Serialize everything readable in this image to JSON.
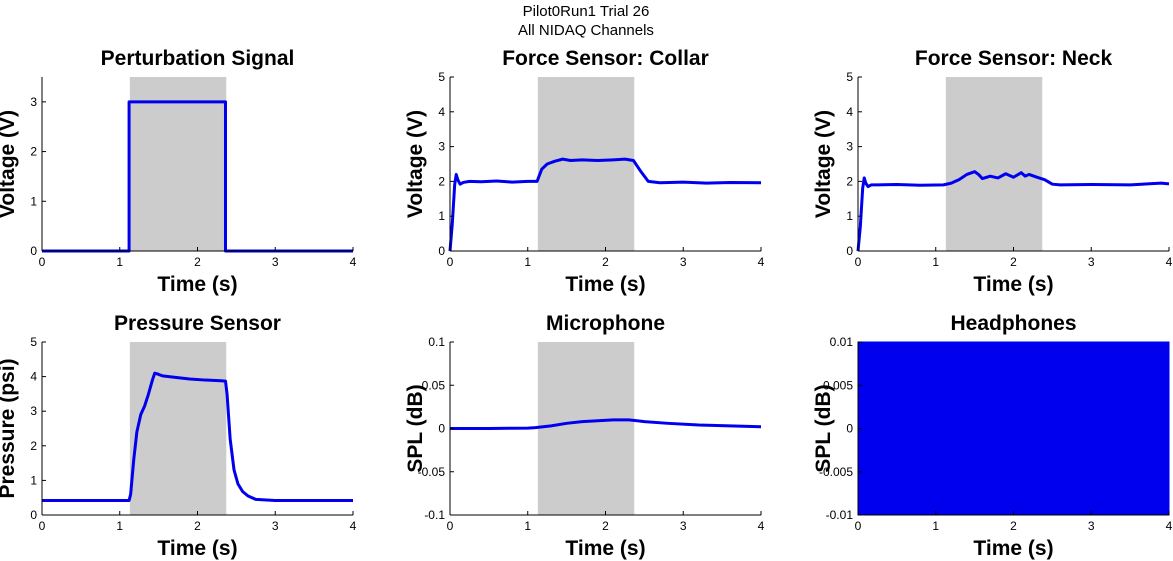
{
  "figure": {
    "title_line1": "Pilot0Run1 Trial 26",
    "title_line2": "All NIDAQ Channels"
  },
  "colors": {
    "line": "#0000ee",
    "shade": "#cccccc",
    "axis": "#000000"
  },
  "chart_data": [
    {
      "type": "line",
      "title": "Perturbation Signal",
      "xlabel": "Time (s)",
      "ylabel": "Voltage (V)",
      "xlim": [
        0,
        4
      ],
      "ylim": [
        0,
        3.5
      ],
      "xticks": [
        "0",
        "1",
        "2",
        "3",
        "4"
      ],
      "xtick_values": [
        0,
        1,
        2,
        3,
        4
      ],
      "yticks": [
        "0",
        "1",
        "2",
        "3"
      ],
      "ytick_values": [
        0,
        1,
        2,
        3
      ],
      "shade": [
        1.13,
        2.37
      ],
      "series": [
        {
          "x": [
            0,
            1.12,
            1.12,
            1.14,
            2.36,
            2.36,
            2.38,
            4
          ],
          "y": [
            0,
            0,
            3,
            3,
            3,
            0,
            0,
            0
          ]
        }
      ],
      "fill": false
    },
    {
      "type": "line",
      "title": "Force Sensor: Collar",
      "xlabel": "Time (s)",
      "ylabel": "Voltage (V)",
      "xlim": [
        0,
        4
      ],
      "ylim": [
        0,
        5
      ],
      "xticks": [
        "0",
        "1",
        "2",
        "3",
        "4"
      ],
      "xtick_values": [
        0,
        1,
        2,
        3,
        4
      ],
      "yticks": [
        "0",
        "1",
        "2",
        "3",
        "4",
        "5"
      ],
      "ytick_values": [
        0,
        1,
        2,
        3,
        4,
        5
      ],
      "shade": [
        1.13,
        2.37
      ],
      "series": [
        {
          "x": [
            0,
            0.03,
            0.06,
            0.08,
            0.1,
            0.13,
            0.17,
            0.25,
            0.4,
            0.6,
            0.8,
            1.0,
            1.12,
            1.18,
            1.25,
            1.35,
            1.45,
            1.55,
            1.7,
            1.9,
            2.1,
            2.25,
            2.36,
            2.45,
            2.55,
            2.7,
            3.0,
            3.3,
            3.6,
            4.0
          ],
          "y": [
            0,
            0.8,
            1.9,
            2.2,
            2.05,
            1.92,
            1.97,
            2.0,
            1.99,
            2.01,
            1.98,
            2.0,
            2.0,
            2.35,
            2.5,
            2.58,
            2.64,
            2.6,
            2.62,
            2.6,
            2.62,
            2.64,
            2.6,
            2.3,
            2.0,
            1.96,
            1.98,
            1.95,
            1.97,
            1.96
          ]
        }
      ],
      "fill": false
    },
    {
      "type": "line",
      "title": "Force Sensor: Neck",
      "xlabel": "Time (s)",
      "ylabel": "Voltage (V)",
      "xlim": [
        0,
        4
      ],
      "ylim": [
        0,
        5
      ],
      "xticks": [
        "0",
        "1",
        "2",
        "3",
        "4"
      ],
      "xtick_values": [
        0,
        1,
        2,
        3,
        4
      ],
      "yticks": [
        "0",
        "1",
        "2",
        "3",
        "4",
        "5"
      ],
      "ytick_values": [
        0,
        1,
        2,
        3,
        4,
        5
      ],
      "shade": [
        1.13,
        2.37
      ],
      "series": [
        {
          "x": [
            0,
            0.03,
            0.06,
            0.08,
            0.1,
            0.13,
            0.17,
            0.25,
            0.5,
            0.8,
            1.1,
            1.2,
            1.3,
            1.4,
            1.5,
            1.55,
            1.6,
            1.7,
            1.8,
            1.9,
            2.0,
            2.1,
            2.15,
            2.2,
            2.3,
            2.4,
            2.5,
            2.6,
            3.0,
            3.5,
            3.9,
            4.0
          ],
          "y": [
            0,
            0.7,
            1.8,
            2.1,
            1.95,
            1.85,
            1.9,
            1.9,
            1.91,
            1.89,
            1.9,
            1.95,
            2.05,
            2.2,
            2.28,
            2.2,
            2.08,
            2.15,
            2.1,
            2.22,
            2.12,
            2.25,
            2.15,
            2.2,
            2.12,
            2.05,
            1.92,
            1.9,
            1.91,
            1.9,
            1.95,
            1.93
          ]
        }
      ],
      "fill": false
    },
    {
      "type": "line",
      "title": "Pressure Sensor",
      "xlabel": "Time (s)",
      "ylabel": "Pressure (psi)",
      "xlim": [
        0,
        4
      ],
      "ylim": [
        0,
        5
      ],
      "xticks": [
        "0",
        "1",
        "2",
        "3",
        "4"
      ],
      "xtick_values": [
        0,
        1,
        2,
        3,
        4
      ],
      "yticks": [
        "0",
        "1",
        "2",
        "3",
        "4",
        "5"
      ],
      "ytick_values": [
        0,
        1,
        2,
        3,
        4,
        5
      ],
      "shade": [
        1.13,
        2.37
      ],
      "series": [
        {
          "x": [
            0,
            0.5,
            1.0,
            1.12,
            1.14,
            1.18,
            1.22,
            1.27,
            1.32,
            1.37,
            1.42,
            1.45,
            1.48,
            1.55,
            1.7,
            1.9,
            2.1,
            2.3,
            2.36,
            2.38,
            2.42,
            2.47,
            2.52,
            2.58,
            2.65,
            2.75,
            3.0,
            3.5,
            4.0
          ],
          "y": [
            0.42,
            0.42,
            0.42,
            0.42,
            0.6,
            1.6,
            2.4,
            2.9,
            3.15,
            3.5,
            3.9,
            4.1,
            4.08,
            4.02,
            3.98,
            3.93,
            3.9,
            3.88,
            3.87,
            3.5,
            2.2,
            1.3,
            0.9,
            0.68,
            0.55,
            0.45,
            0.42,
            0.42,
            0.42
          ]
        }
      ],
      "fill": false
    },
    {
      "type": "line",
      "title": "Microphone",
      "xlabel": "Time (s)",
      "ylabel": "SPL (dB)",
      "xlim": [
        0,
        4
      ],
      "ylim": [
        -0.1,
        0.1
      ],
      "xticks": [
        "0",
        "1",
        "2",
        "3",
        "4"
      ],
      "xtick_values": [
        0,
        1,
        2,
        3,
        4
      ],
      "yticks": [
        "-0.1",
        "-0.05",
        "0",
        "0.05",
        "0.1"
      ],
      "ytick_values": [
        -0.1,
        -0.05,
        0,
        0.05,
        0.1
      ],
      "shade": [
        1.13,
        2.37
      ],
      "series": [
        {
          "x": [
            0,
            0.5,
            1.0,
            1.1,
            1.3,
            1.5,
            1.7,
            1.9,
            2.1,
            2.3,
            2.5,
            2.8,
            3.2,
            3.6,
            4.0
          ],
          "y": [
            0.0,
            0.0,
            0.0005,
            0.001,
            0.003,
            0.006,
            0.008,
            0.009,
            0.01,
            0.01,
            0.008,
            0.006,
            0.004,
            0.003,
            0.002
          ]
        }
      ],
      "fill": false
    },
    {
      "type": "area",
      "title": "Headphones",
      "xlabel": "Time (s)",
      "ylabel": "SPL (dB)",
      "xlim": [
        0,
        4
      ],
      "ylim": [
        -0.01,
        0.01
      ],
      "xticks": [
        "0",
        "1",
        "2",
        "3",
        "4"
      ],
      "xtick_values": [
        0,
        1,
        2,
        3,
        4
      ],
      "yticks": [
        "-0.01",
        "-0.005",
        "0",
        "0.005",
        "0.01"
      ],
      "ytick_values": [
        -0.01,
        -0.005,
        0,
        0.005,
        0.01
      ],
      "shade": [],
      "series": [
        {
          "x": [
            0,
            4
          ],
          "y": [
            0.01,
            0.01
          ],
          "y_low": [
            -0.01,
            -0.01
          ]
        }
      ],
      "fill": true
    }
  ]
}
